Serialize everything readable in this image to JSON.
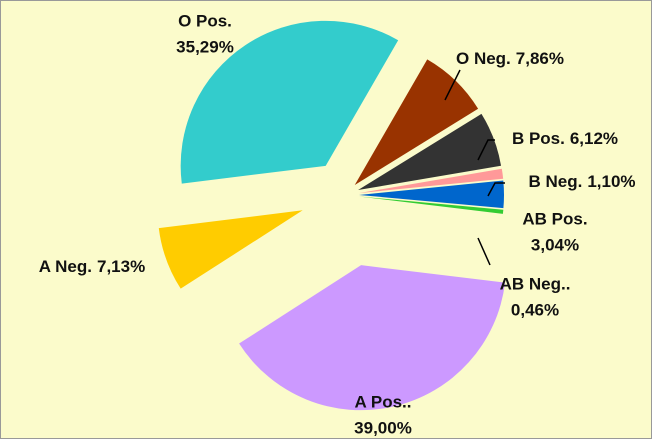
{
  "chart_data": {
    "type": "pie",
    "categories": [
      "O Neg.",
      "B Pos.",
      "B Neg.",
      "AB Pos.",
      "AB Neg..",
      "A Pos..",
      "A Neg.",
      "O Pos."
    ],
    "values": [
      7.86,
      6.12,
      1.1,
      3.04,
      0.46,
      39.0,
      7.13,
      35.29
    ],
    "value_labels": [
      "7,86%",
      "6,12%",
      "1,10%",
      "3,04%",
      "0,46%",
      "39,00%",
      "7,13%",
      "35,29%"
    ],
    "colors": [
      "#993300",
      "#333333",
      "#ff9999",
      "#0066cc",
      "#33cc33",
      "#cc99ff",
      "#ffcc00",
      "#33cccc"
    ]
  }
}
